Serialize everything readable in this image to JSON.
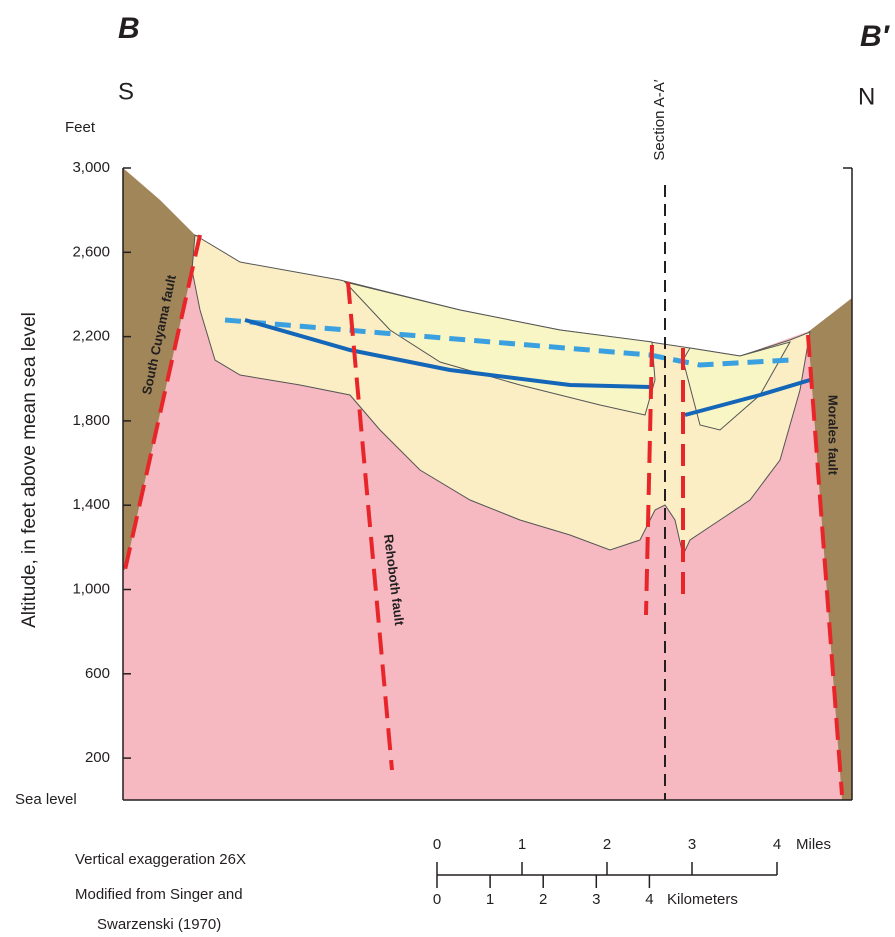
{
  "header": {
    "left_label": "B",
    "right_label": "B′",
    "left_direction": "S",
    "right_direction": "N"
  },
  "altitude_axis": {
    "unit": "Feet",
    "title": "Altitude, in feet above mean sea level",
    "tick_labels": [
      "3,000",
      "2,600",
      "2,200",
      "1,800",
      "1,400",
      "1,000",
      "600",
      "200"
    ],
    "base_label": "Sea level"
  },
  "section_label": "Section A-A′",
  "faults": [
    "South Cuyama fault",
    "Rehoboth fault",
    "Morales fault"
  ],
  "notes": [
    "Vertical exaggeration 26X",
    "Modified from Singer and",
    "Swarzenski (1970)"
  ],
  "scale_bar": {
    "miles": {
      "labels": [
        "0",
        "1",
        "2",
        "3",
        "4"
      ],
      "unit": "Miles"
    },
    "kilometers": {
      "labels": [
        "0",
        "1",
        "2",
        "3",
        "4"
      ],
      "unit": "Kilometers"
    }
  }
}
